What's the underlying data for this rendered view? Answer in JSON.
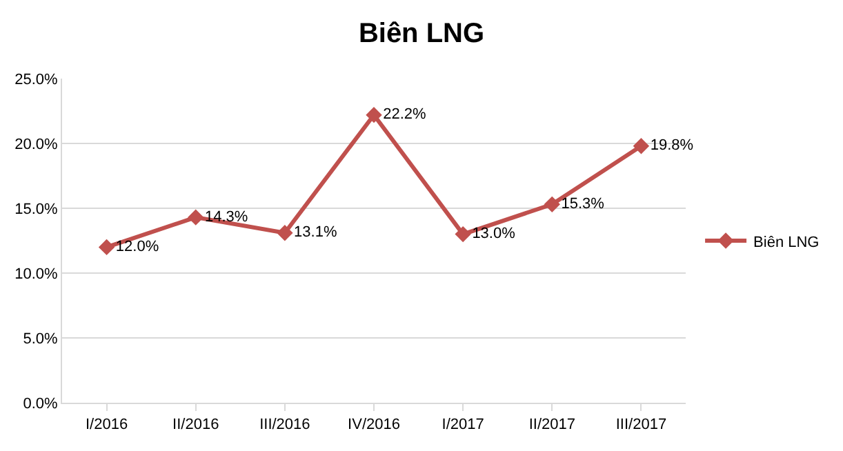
{
  "chart_data": {
    "type": "line",
    "title": "Biên LNG",
    "categories": [
      "I/2016",
      "II/2016",
      "III/2016",
      "IV/2016",
      "I/2017",
      "II/2017",
      "III/2017"
    ],
    "series": [
      {
        "name": "Biên LNG",
        "color": "#c0504d",
        "values": [
          12.0,
          14.3,
          13.1,
          22.2,
          13.0,
          15.3,
          19.8
        ],
        "value_labels": [
          "12.0%",
          "14.3%",
          "13.1%",
          "22.2%",
          "13.0%",
          "15.3%",
          "19.8%"
        ]
      }
    ],
    "ylim": [
      0,
      25
    ],
    "yticks": [
      {
        "value": 0,
        "label": "0.0%"
      },
      {
        "value": 5,
        "label": "5.0%"
      },
      {
        "value": 10,
        "label": "10.0%"
      },
      {
        "value": 15,
        "label": "15.0%"
      },
      {
        "value": 20,
        "label": "20.0%"
      },
      {
        "value": 25,
        "label": "25.0%"
      }
    ],
    "grid": "y",
    "legend": "right",
    "marker": "diamond",
    "line_style": "solid"
  }
}
